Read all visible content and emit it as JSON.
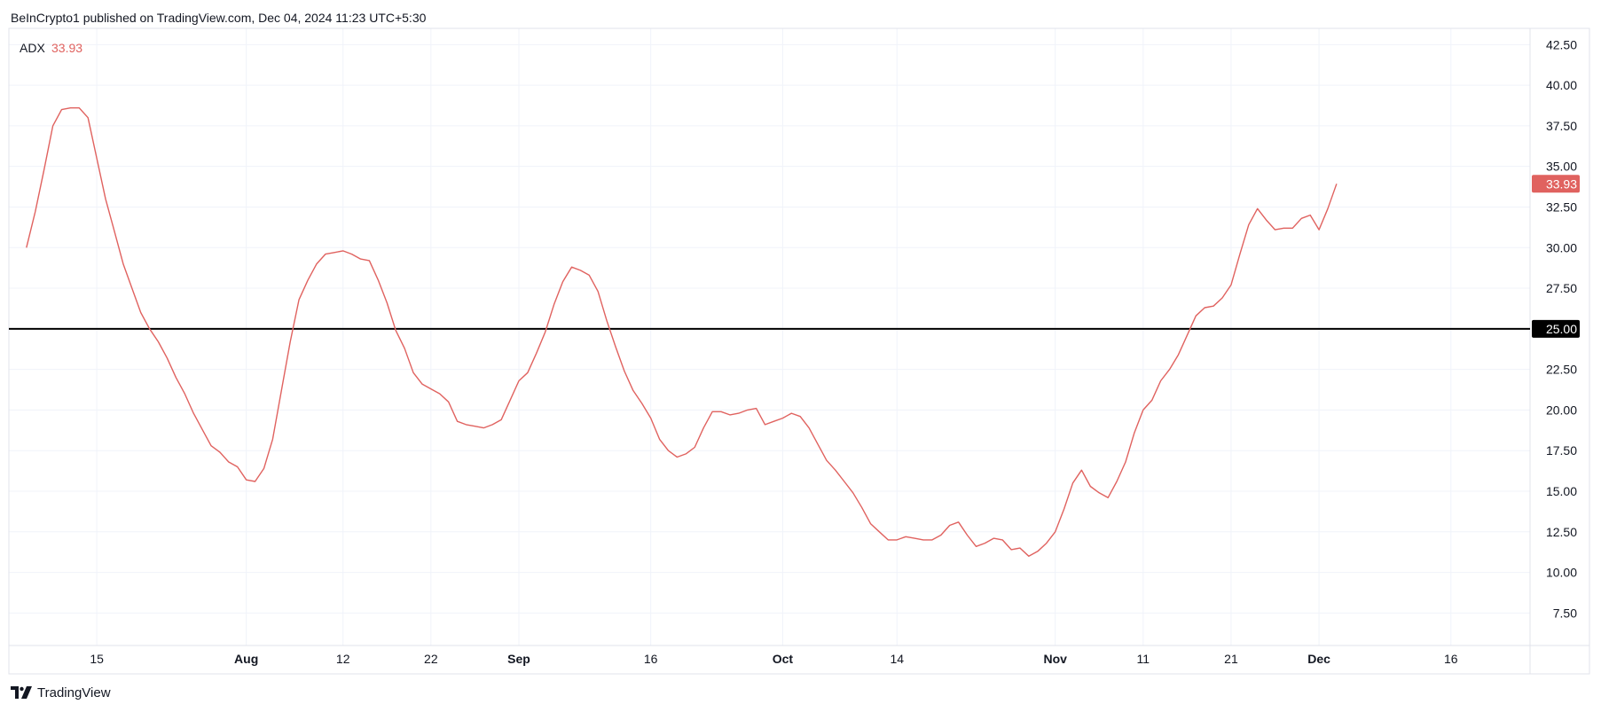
{
  "attribution": "BeInCrypto1 published on TradingView.com, Dec 04, 2024 11:23 UTC+5:30",
  "footer": {
    "logo_icon": "tradingview-logo-icon",
    "text": "TradingView"
  },
  "colors": {
    "series": "#e0625f",
    "reference_line": "#000000",
    "grid": "#f0f3fa",
    "border": "#e0e3eb",
    "ref_tag_bg": "#000000"
  },
  "chart_data": {
    "type": "line",
    "grid": true,
    "legend": "top-left",
    "ylim": [
      5.5,
      43.5
    ],
    "y_ticks": [
      "7.50",
      "10.00",
      "12.50",
      "15.00",
      "17.50",
      "20.00",
      "22.50",
      "25.00",
      "27.50",
      "30.00",
      "32.50",
      "35.00",
      "37.50",
      "40.00",
      "42.50"
    ],
    "x_ticks": [
      {
        "label": "15",
        "x": 8,
        "bold": false
      },
      {
        "label": "Aug",
        "x": 25,
        "bold": true
      },
      {
        "label": "12",
        "x": 36,
        "bold": false
      },
      {
        "label": "22",
        "x": 46,
        "bold": false
      },
      {
        "label": "Sep",
        "x": 56,
        "bold": true
      },
      {
        "label": "16",
        "x": 71,
        "bold": false
      },
      {
        "label": "Oct",
        "x": 86,
        "bold": true
      },
      {
        "label": "14",
        "x": 99,
        "bold": false
      },
      {
        "label": "Nov",
        "x": 117,
        "bold": true
      },
      {
        "label": "11",
        "x": 127,
        "bold": false
      },
      {
        "label": "21",
        "x": 137,
        "bold": false
      },
      {
        "label": "Dec",
        "x": 147,
        "bold": true
      },
      {
        "label": "16",
        "x": 162,
        "bold": false
      }
    ],
    "xlim": [
      -2,
      171
    ],
    "series": [
      {
        "name": "ADX",
        "last_value": "33.93",
        "values": [
          30.0,
          32.2,
          34.8,
          37.5,
          38.5,
          38.6,
          38.6,
          38.0,
          35.5,
          33.0,
          31.0,
          29.0,
          27.5,
          26.0,
          25.0,
          24.2,
          23.2,
          22.0,
          21.0,
          19.8,
          18.8,
          17.8,
          17.4,
          16.8,
          16.5,
          15.7,
          15.6,
          16.4,
          18.2,
          21.2,
          24.2,
          26.8,
          28.0,
          29.0,
          29.6,
          29.7,
          29.8,
          29.6,
          29.3,
          29.2,
          28.0,
          26.6,
          24.9,
          23.8,
          22.3,
          21.6,
          21.3,
          21.0,
          20.5,
          19.3,
          19.1,
          19.0,
          18.9,
          19.1,
          19.4,
          20.6,
          21.8,
          22.3,
          23.5,
          24.8,
          26.5,
          27.9,
          28.8,
          28.6,
          28.3,
          27.3,
          25.5,
          23.9,
          22.4,
          21.2,
          20.4,
          19.5,
          18.2,
          17.5,
          17.1,
          17.3,
          17.7,
          18.9,
          19.9,
          19.9,
          19.7,
          19.8,
          20.0,
          20.1,
          19.1,
          19.3,
          19.5,
          19.8,
          19.6,
          18.9,
          17.9,
          16.9,
          16.3,
          15.6,
          14.9,
          14.0,
          13.0,
          12.5,
          12.0,
          12.0,
          12.2,
          12.1,
          12.0,
          12.0,
          12.3,
          12.9,
          13.1,
          12.3,
          11.6,
          11.8,
          12.1,
          12.0,
          11.4,
          11.5,
          11.0,
          11.3,
          11.8,
          12.5,
          13.9,
          15.5,
          16.3,
          15.3,
          14.9,
          14.6,
          15.6,
          16.8,
          18.6,
          20.0,
          20.6,
          21.8,
          22.5,
          23.4,
          24.6,
          25.8,
          26.3,
          26.4,
          26.9,
          27.7,
          29.6,
          31.4,
          32.4,
          31.7,
          31.1,
          31.2,
          31.2,
          31.8,
          32.0,
          31.1,
          32.4,
          33.93
        ]
      }
    ],
    "reference_line": {
      "value": 25.0,
      "label": "25.00"
    }
  }
}
